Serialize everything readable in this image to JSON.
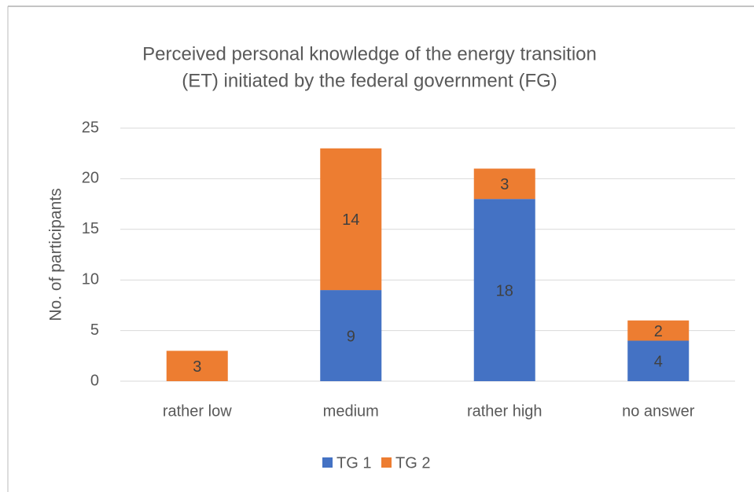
{
  "chart_data": {
    "type": "stacked_bar",
    "title": [
      "Perceived personal knowledge of the energy transition",
      "(ET) initiated by the federal government (FG)"
    ],
    "y_label": "No. of participants",
    "categories": [
      "rather low",
      "medium",
      "rather high",
      "no answer"
    ],
    "series": [
      {
        "name": "TG 1",
        "color": "#4472c4",
        "values": [
          null,
          9,
          18,
          4
        ]
      },
      {
        "name": "TG 2",
        "color": "#ed7d31",
        "values": [
          3,
          14,
          3,
          2
        ]
      }
    ],
    "ylim": [
      0,
      25
    ],
    "yticks": [
      0,
      5,
      10,
      15,
      20,
      25
    ],
    "grid": true,
    "legend": "bottom"
  }
}
